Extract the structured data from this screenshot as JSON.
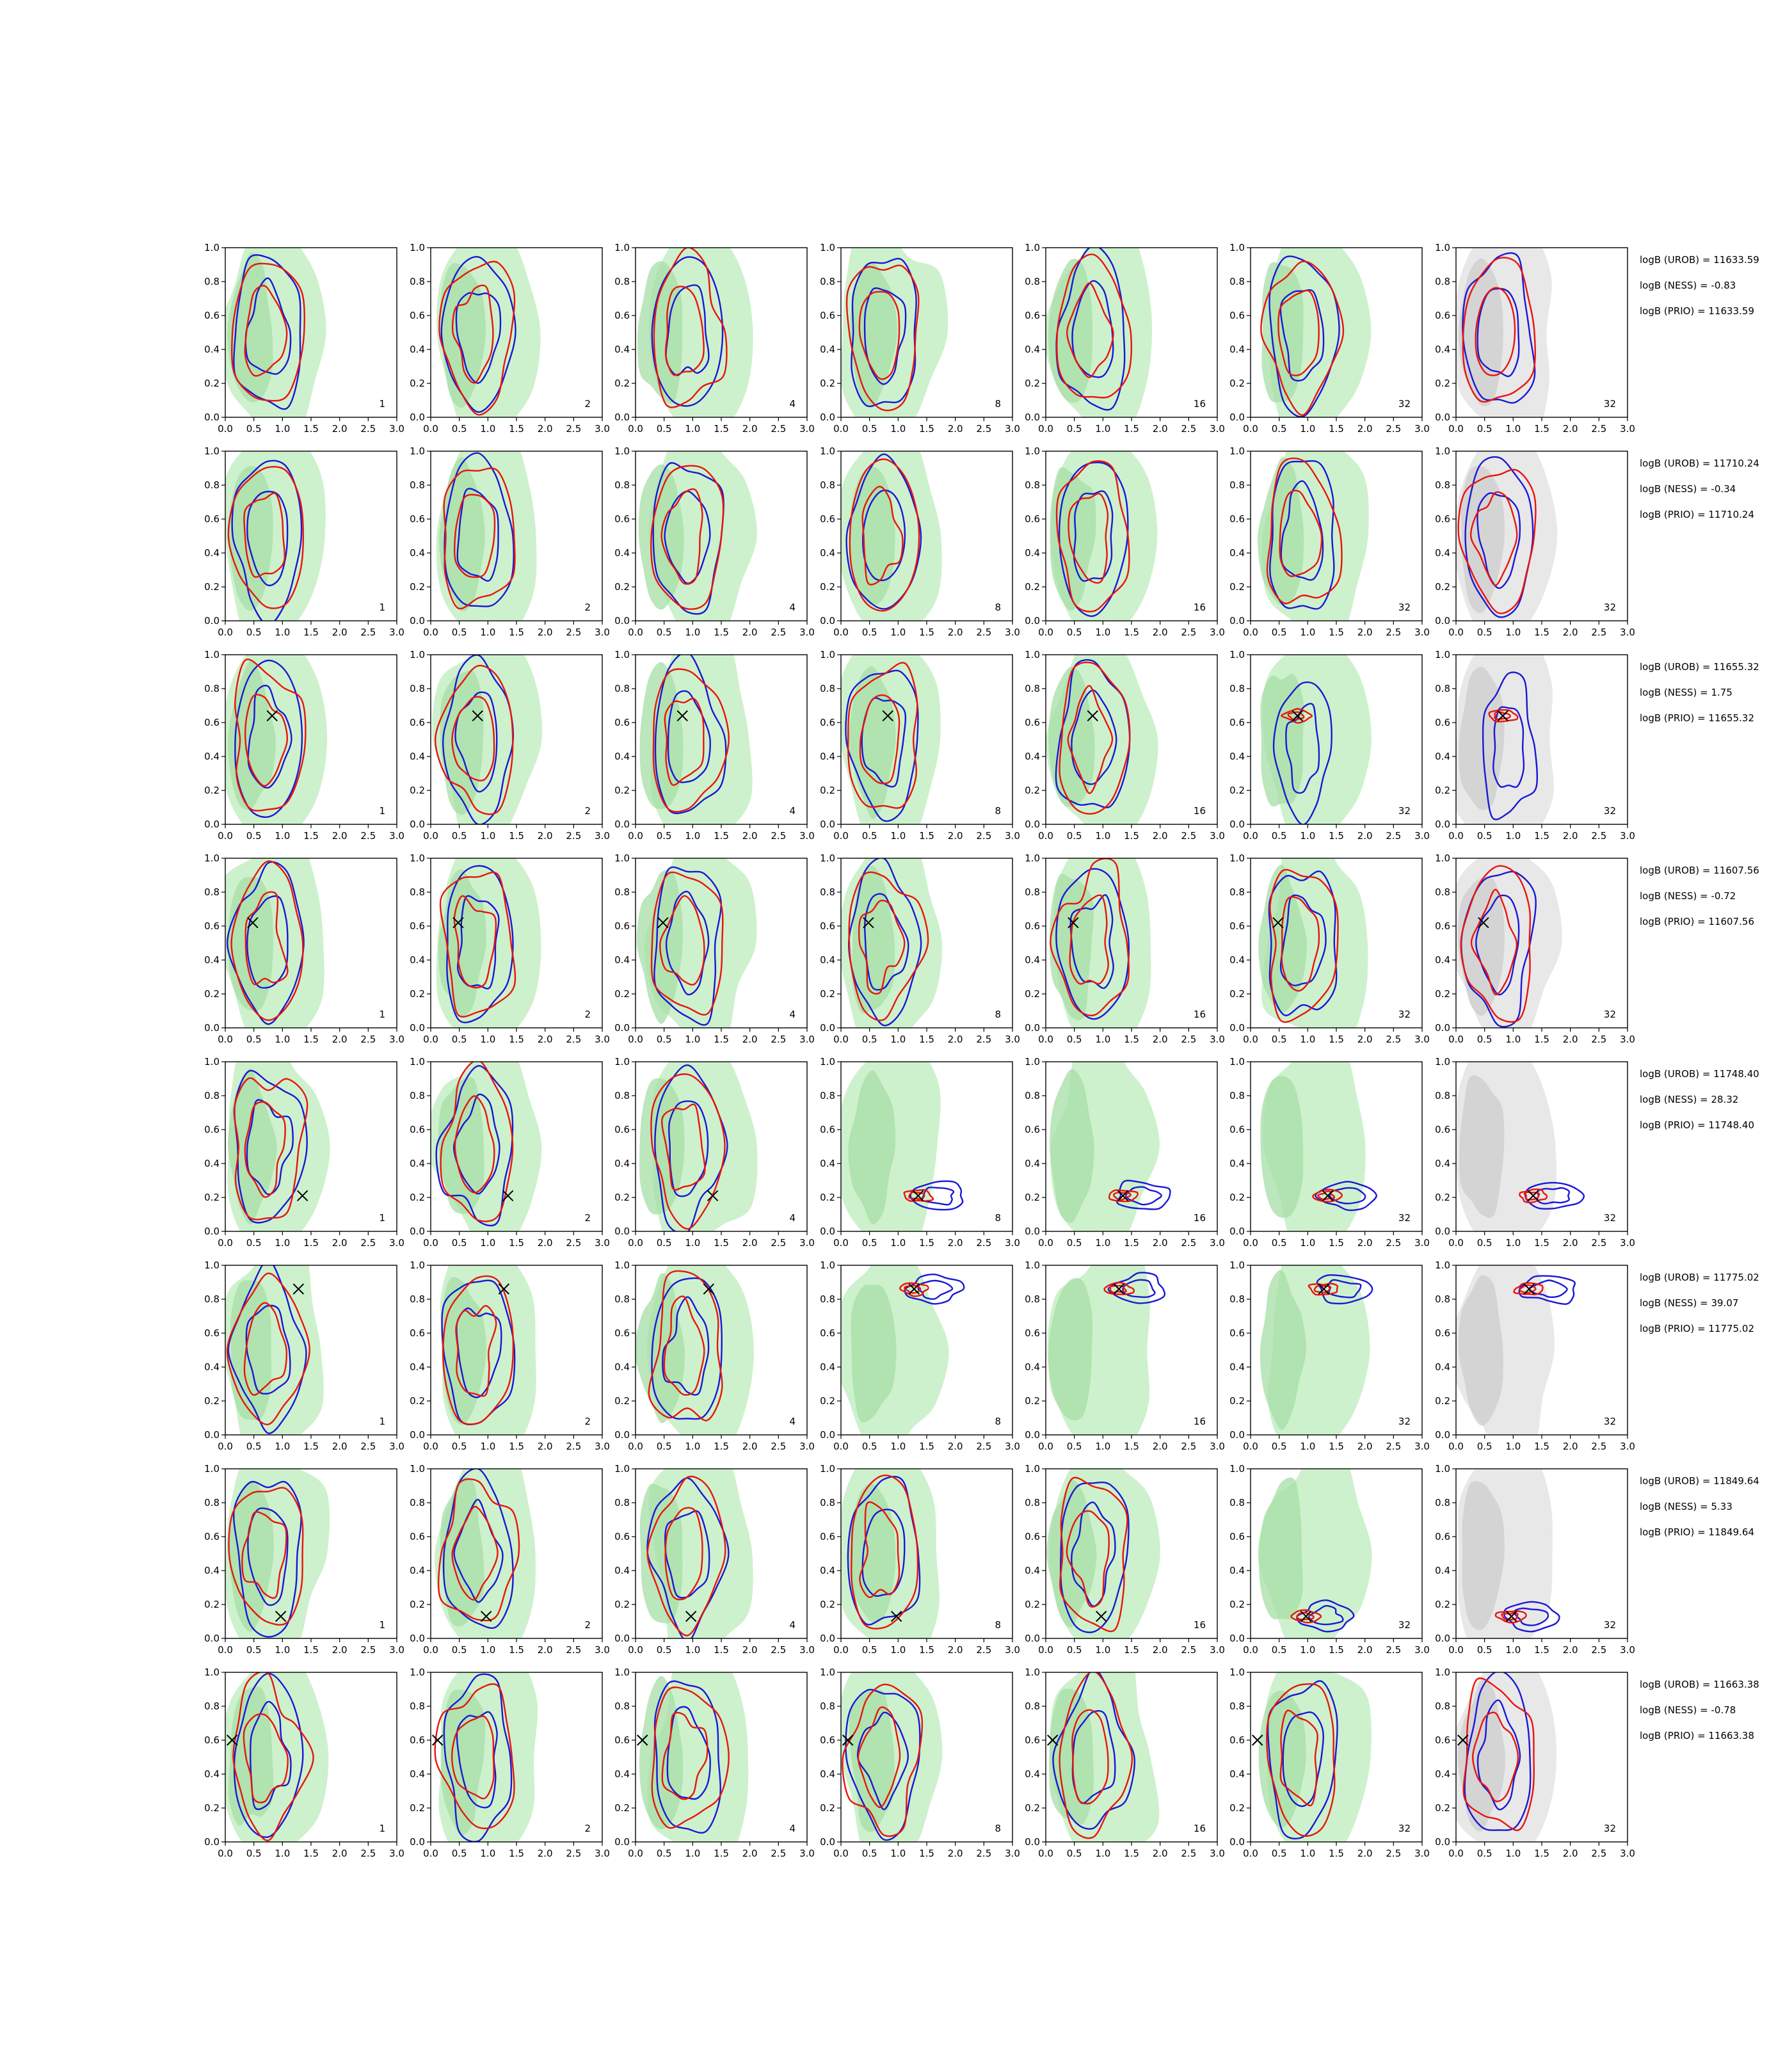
{
  "chart_data": {
    "type": "contour-grid",
    "rows": 8,
    "cols": 7,
    "xlim": [
      0,
      3
    ],
    "ylim": [
      0,
      1
    ],
    "xticks": [
      "0.0",
      "0.5",
      "1.0",
      "1.5",
      "2.0",
      "2.5",
      "3.0"
    ],
    "yticks": [
      "0.0",
      "0.2",
      "0.4",
      "0.6",
      "0.8",
      "1.0"
    ],
    "column_labels": [
      "1",
      "2",
      "4",
      "8",
      "16",
      "32",
      "32"
    ],
    "colors": {
      "red": "#e8150e",
      "blue": "#1a17d6",
      "green_fill": "#c8efc6",
      "green_core": "#a6dda6",
      "gray_fill": "#e6e6e6",
      "gray_core": "#cdcdcd",
      "marker": "#000000"
    },
    "row_data": [
      {
        "truth": null,
        "scores": [
          "logB (UROB) = 11633.59",
          "logB (NESS) = -0.83",
          "logB (PRIO) = 11633.59"
        ]
      },
      {
        "truth": null,
        "scores": [
          "logB (UROB) = 11710.24",
          "logB (NESS) = -0.34",
          "logB (PRIO) = 11710.24"
        ]
      },
      {
        "truth": [
          0.82,
          0.64
        ],
        "scores": [
          "logB (UROB) = 11655.32",
          "logB (NESS) = 1.75",
          "logB (PRIO) = 11655.32"
        ]
      },
      {
        "truth": [
          0.48,
          0.62
        ],
        "scores": [
          "logB (UROB) = 11607.56",
          "logB (NESS) = -0.72",
          "logB (PRIO) = 11607.56"
        ]
      },
      {
        "truth": [
          1.35,
          0.21
        ],
        "scores": [
          "logB (UROB) = 11748.40",
          "logB (NESS) = 28.32",
          "logB (PRIO) = 11748.40"
        ]
      },
      {
        "truth": [
          1.28,
          0.86
        ],
        "scores": [
          "logB (UROB) = 11775.02",
          "logB (NESS) = 39.07",
          "logB (PRIO) = 11775.02"
        ]
      },
      {
        "truth": [
          0.97,
          0.13
        ],
        "scores": [
          "logB (UROB) = 11849.64",
          "logB (NESS) = 5.33",
          "logB (PRIO) = 11849.64"
        ]
      },
      {
        "truth": [
          0.12,
          0.6
        ],
        "scores": [
          "logB (UROB) = 11663.38",
          "logB (NESS) = -0.78",
          "logB (PRIO) = 11663.38"
        ]
      }
    ]
  }
}
